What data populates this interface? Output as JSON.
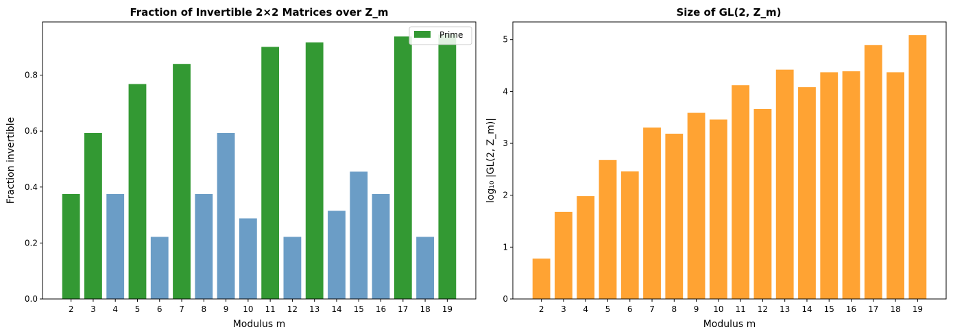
{
  "chart_data": [
    {
      "type": "bar",
      "title": "Fraction of Invertible 2×2 Matrices over Z_m",
      "xlabel": "Modulus m",
      "ylabel": "Fraction invertible",
      "categories": [
        "2",
        "3",
        "4",
        "5",
        "6",
        "7",
        "8",
        "9",
        "10",
        "11",
        "12",
        "13",
        "14",
        "15",
        "16",
        "17",
        "18",
        "19"
      ],
      "values": [
        0.375,
        0.593,
        0.375,
        0.768,
        0.222,
        0.84,
        0.375,
        0.593,
        0.288,
        0.901,
        0.222,
        0.917,
        0.315,
        0.455,
        0.375,
        0.938,
        0.222,
        0.945
      ],
      "is_prime": [
        true,
        true,
        false,
        true,
        false,
        true,
        false,
        false,
        false,
        true,
        false,
        true,
        false,
        false,
        false,
        true,
        false,
        true
      ],
      "colors": {
        "prime": "#339933",
        "composite": "#6b9dc6"
      },
      "ylim": [
        0,
        0.99
      ],
      "yticks": [
        0.0,
        0.2,
        0.4,
        0.6,
        0.8
      ],
      "ytick_labels": [
        "0.0",
        "0.2",
        "0.4",
        "0.6",
        "0.8"
      ],
      "legend": {
        "label": "Prime",
        "location": "upper right"
      },
      "grid": false
    },
    {
      "type": "bar",
      "title": "Size of GL(2, Z_m)",
      "xlabel": "Modulus m",
      "ylabel": "log₁₀ |GL(2, Z_m)|",
      "categories": [
        "2",
        "3",
        "4",
        "5",
        "6",
        "7",
        "8",
        "9",
        "10",
        "11",
        "12",
        "13",
        "14",
        "15",
        "16",
        "17",
        "18",
        "19"
      ],
      "values": [
        0.778,
        1.68,
        1.982,
        2.681,
        2.459,
        3.305,
        3.186,
        3.588,
        3.458,
        4.121,
        3.662,
        4.42,
        4.083,
        4.37,
        4.39,
        4.893,
        4.37,
        5.087
      ],
      "color": "#ffa333",
      "ylim": [
        0,
        5.34
      ],
      "yticks": [
        0,
        1,
        2,
        3,
        4,
        5
      ],
      "ytick_labels": [
        "0",
        "1",
        "2",
        "3",
        "4",
        "5"
      ],
      "grid": false
    }
  ]
}
